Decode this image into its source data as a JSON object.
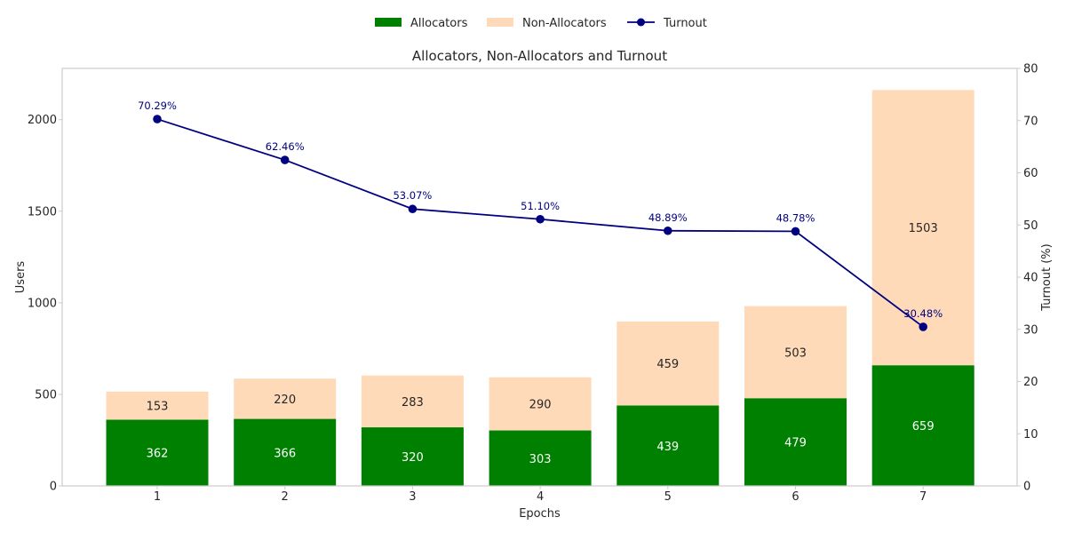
{
  "chart_data": {
    "type": "bar",
    "stacked": true,
    "title": "Allocators, Non-Allocators and Turnout",
    "xlabel": "Epochs",
    "ylabel": "Users",
    "y2label": "Turnout (%)",
    "categories": [
      "1",
      "2",
      "3",
      "4",
      "5",
      "6",
      "7"
    ],
    "ylim": [
      0,
      2280
    ],
    "y2lim": [
      0,
      80
    ],
    "yticks": [
      0,
      500,
      1000,
      1500,
      2000
    ],
    "y2ticks": [
      0,
      10,
      20,
      30,
      40,
      50,
      60,
      70,
      80
    ],
    "grid": false,
    "legend_position": "top-center",
    "series": [
      {
        "name": "Allocators",
        "kind": "bar",
        "axis": "left",
        "color": "#008000",
        "label_color": "#ffffff",
        "values": [
          362,
          366,
          320,
          303,
          439,
          479,
          659
        ]
      },
      {
        "name": "Non-Allocators",
        "kind": "bar",
        "axis": "left",
        "color": "#ffdab9",
        "label_color": "#262626",
        "values": [
          153,
          220,
          283,
          290,
          459,
          503,
          1503
        ]
      },
      {
        "name": "Turnout",
        "kind": "line",
        "axis": "right",
        "color": "#000080",
        "values": [
          70.29,
          62.46,
          53.07,
          51.1,
          48.89,
          48.78,
          30.48
        ],
        "labels": [
          "70.29%",
          "62.46%",
          "53.07%",
          "51.10%",
          "48.89%",
          "48.78%",
          "30.48%"
        ]
      }
    ]
  }
}
